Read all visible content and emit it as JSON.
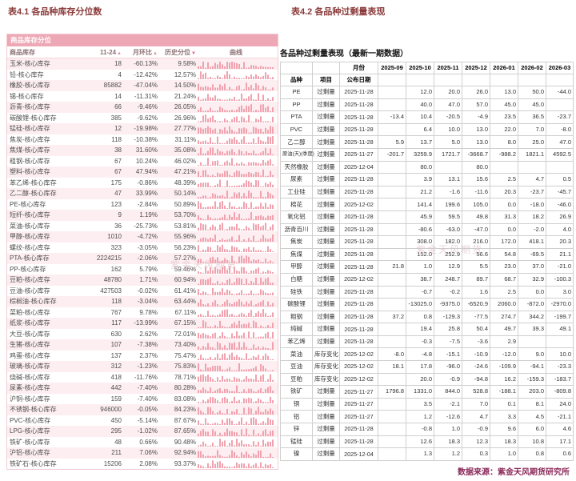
{
  "page": {
    "title_left": "表4.1 各品种库存分位数",
    "title_right": "表4.2 各品种过剩量表现",
    "footer": "数据来源：紫金天风期货研究所",
    "watermark": "紫金天风期货"
  },
  "colors": {
    "positive_value": "#2e6bcc",
    "negative_value": "#e23a3a",
    "table_accent_pink": "#eda7b5",
    "sparkline_pink": "#f0a2ae",
    "footer_text": "#8a2858"
  },
  "left_table": {
    "band_title": "商品库存分位",
    "columns": [
      "商品库存",
      "11-24",
      "月环比",
      "历史分位",
      "曲线"
    ],
    "sort_asc_glyph": "▲",
    "sort_desc_glyph": "▼",
    "rows": [
      {
        "name": "玉米-核心库存",
        "value": "18",
        "mom": "-60.13%",
        "pct": "9.58%"
      },
      {
        "name": "铅-核心库存",
        "value": "4",
        "mom": "-12.42%",
        "pct": "12.57%"
      },
      {
        "name": "橡胶-核心库存",
        "value": "85882",
        "mom": "-47.04%",
        "pct": "14.50%"
      },
      {
        "name": "锡-核心库存",
        "value": "14",
        "mom": "-11.31%",
        "pct": "21.24%"
      },
      {
        "name": "沥青-核心库存",
        "value": "66",
        "mom": "-9.46%",
        "pct": "26.05%"
      },
      {
        "name": "碳酸锂-核心库存",
        "value": "385",
        "mom": "-9.62%",
        "pct": "26.96%"
      },
      {
        "name": "锰硅-核心库存",
        "value": "12",
        "mom": "-19.98%",
        "pct": "27.77%"
      },
      {
        "name": "焦炭-核心库存",
        "value": "118",
        "mom": "-10.38%",
        "pct": "31.11%"
      },
      {
        "name": "焦煤-核心库存",
        "value": "38",
        "mom": "31.60%",
        "pct": "35.08%"
      },
      {
        "name": "粗钢-核心库存",
        "value": "67",
        "mom": "10.24%",
        "pct": "46.02%"
      },
      {
        "name": "塑料-核心库存",
        "value": "67",
        "mom": "47.94%",
        "pct": "47.21%"
      },
      {
        "name": "苯乙烯-核心库存",
        "value": "175",
        "mom": "-0.86%",
        "pct": "48.39%"
      },
      {
        "name": "乙二醇-核心库存",
        "value": "47",
        "mom": "33.99%",
        "pct": "50.14%"
      },
      {
        "name": "PE-核心库存",
        "value": "123",
        "mom": "-2.84%",
        "pct": "50.89%"
      },
      {
        "name": "短纤-核心库存",
        "value": "9",
        "mom": "1.19%",
        "pct": "53.70%"
      },
      {
        "name": "菜油-核心库存",
        "value": "36",
        "mom": "-25.73%",
        "pct": "53.81%"
      },
      {
        "name": "甲醇-核心库存",
        "value": "1010",
        "mom": "-4.72%",
        "pct": "55.96%"
      },
      {
        "name": "螺纹-核心库存",
        "value": "323",
        "mom": "-3.05%",
        "pct": "56.23%"
      },
      {
        "name": "PTA-核心库存",
        "value": "2224215",
        "mom": "-2.06%",
        "pct": "57.27%"
      },
      {
        "name": "PP-核心库存",
        "value": "162",
        "mom": "5.79%",
        "pct": "59.46%"
      },
      {
        "name": "豆粕-核心库存",
        "value": "48780",
        "mom": "1.71%",
        "pct": "60.94%"
      },
      {
        "name": "豆油-核心库存",
        "value": "427503",
        "mom": "-0.02%",
        "pct": "61.41%"
      },
      {
        "name": "棕榈油-核心库存",
        "value": "118",
        "mom": "-3.04%",
        "pct": "63.44%"
      },
      {
        "name": "菜粕-核心库存",
        "value": "767",
        "mom": "9.78%",
        "pct": "67.11%"
      },
      {
        "name": "纸浆-核心库存",
        "value": "117",
        "mom": "-13.99%",
        "pct": "67.15%"
      },
      {
        "name": "大豆-核心库存",
        "value": "630",
        "mom": "2.62%",
        "pct": "72.01%"
      },
      {
        "name": "生猪-核心库存",
        "value": "107",
        "mom": "-7.38%",
        "pct": "73.40%"
      },
      {
        "name": "鸡蛋-核心库存",
        "value": "137",
        "mom": "2.37%",
        "pct": "75.47%"
      },
      {
        "name": "玻璃-核心库存",
        "value": "312",
        "mom": "-1.23%",
        "pct": "75.83%"
      },
      {
        "name": "烧碱-核心库存",
        "value": "418",
        "mom": "-11.76%",
        "pct": "78.71%"
      },
      {
        "name": "尿素-核心库存",
        "value": "442",
        "mom": "-7.40%",
        "pct": "80.28%"
      },
      {
        "name": "沪铜-核心库存",
        "value": "159",
        "mom": "-7.40%",
        "pct": "83.08%"
      },
      {
        "name": "不锈钢-核心库存",
        "value": "946000",
        "mom": "-0.05%",
        "pct": "84.23%"
      },
      {
        "name": "PVC-核心库存",
        "value": "450",
        "mom": "-5.14%",
        "pct": "87.67%"
      },
      {
        "name": "LPG-核心库存",
        "value": "295",
        "mom": "-1.02%",
        "pct": "87.65%"
      },
      {
        "name": "铁矿-核心库存",
        "value": "48",
        "mom": "0.66%",
        "pct": "90.48%"
      },
      {
        "name": "沪铝-核心库存",
        "value": "211",
        "mom": "7.06%",
        "pct": "92.94%"
      },
      {
        "name": "铁矿石-核心库存",
        "value": "15206",
        "mom": "2.08%",
        "pct": "93.37%"
      }
    ]
  },
  "right_table": {
    "title": "各品种过剩量表现（最新一期数据）",
    "header_month_label": "月份",
    "header2": [
      "品种",
      "项目",
      "公布日期"
    ],
    "months": [
      "2025-09",
      "2025-10",
      "2025-11",
      "2025-12",
      "2026-01",
      "2026-02",
      "2026-03"
    ],
    "rows": [
      {
        "name": "PE",
        "item": "过剩量",
        "date": "2025-11-28",
        "values": [
          "",
          "12.0",
          "20.0",
          "26.0",
          "13.0",
          "50.0",
          "-44.0"
        ]
      },
      {
        "name": "PP",
        "item": "过剩量",
        "date": "2025-11-28",
        "values": [
          "",
          "40.0",
          "47.0",
          "57.0",
          "45.0",
          "45.0",
          ""
        ]
      },
      {
        "name": "PTA",
        "item": "过剩量",
        "date": "2025-11-28",
        "values": [
          "-13.4",
          "10.4",
          "-20.5",
          "-4.9",
          "23.5",
          "36.5",
          "-23.7"
        ]
      },
      {
        "name": "PVC",
        "item": "过剩量",
        "date": "2025-11-28",
        "values": [
          "",
          "6.4",
          "10.0",
          "13.0",
          "22.0",
          "7.0",
          "-8.0"
        ]
      },
      {
        "name": "乙二醇",
        "item": "过剩量",
        "date": "2025-11-28",
        "values": [
          "5.9",
          "13.7",
          "5.0",
          "13.0",
          "8.0",
          "25.0",
          "47.0"
        ]
      },
      {
        "name": "原油(天)(季度)",
        "item": "过剩量",
        "date": "2025-11-27",
        "values": [
          "-201.7",
          "3259.9",
          "1721.7",
          "-3668.7",
          "-988.2",
          "1821.1",
          "4592.5"
        ]
      },
      {
        "name": "天然橡胶",
        "item": "过剩量",
        "date": "2025-12-04",
        "values": [
          "",
          "80.0",
          "",
          "80.0",
          "",
          "",
          ""
        ]
      },
      {
        "name": "尿素",
        "item": "过剩量",
        "date": "2025-11-28",
        "values": [
          "",
          "3.9",
          "13.1",
          "15.6",
          "2.5",
          "4.7",
          "0.5"
        ]
      },
      {
        "name": "工业硅",
        "item": "过剩量",
        "date": "2025-11-28",
        "values": [
          "",
          "21.2",
          "-1.6",
          "-11.6",
          "20.3",
          "-23.7",
          "-45.7"
        ]
      },
      {
        "name": "棉花",
        "item": "过剩量",
        "date": "2025-12-02",
        "values": [
          "",
          "141.4",
          "199.6",
          "105.0",
          "0.0",
          "-18.0",
          "-46.0"
        ]
      },
      {
        "name": "氧化铝",
        "item": "过剩量",
        "date": "2025-11-28",
        "values": [
          "",
          "45.9",
          "59.5",
          "49.8",
          "31.3",
          "18.2",
          "26.9"
        ]
      },
      {
        "name": "沥青百川",
        "item": "过剩量",
        "date": "2025-11-28",
        "values": [
          "",
          "-80.6",
          "-63.0",
          "-47.0",
          "0.0",
          "-2.0",
          "4.0"
        ]
      },
      {
        "name": "焦炭",
        "item": "过剩量",
        "date": "2025-11-28",
        "values": [
          "",
          "308.0",
          "182.0",
          "216.0",
          "172.0",
          "418.1",
          "20.3"
        ]
      },
      {
        "name": "焦煤",
        "item": "过剩量",
        "date": "2025-11-28",
        "values": [
          "",
          "152.0",
          "252.9",
          "56.6",
          "54.8",
          "-69.5",
          "21.1"
        ]
      },
      {
        "name": "甲醇",
        "item": "过剩量",
        "date": "2025-11-28",
        "values": [
          "21.8",
          "1.0",
          "12.9",
          "5.5",
          "23.0",
          "37.0",
          "-21.0"
        ]
      },
      {
        "name": "白糖",
        "item": "过剩量",
        "date": "2025-12-02",
        "values": [
          "",
          "38.7",
          "248.7",
          "89.7",
          "68.7",
          "32.9",
          "-100.3"
        ]
      },
      {
        "name": "硅铁",
        "item": "过剩量",
        "date": "2025-11-28",
        "values": [
          "",
          "-0.7",
          "-0.2",
          "1.6",
          "2.5",
          "0.0",
          "3.0"
        ]
      },
      {
        "name": "碳酸锂",
        "item": "过剩量",
        "date": "2025-11-28",
        "values": [
          "",
          "-13025.0",
          "-9375.0",
          "-6520.9",
          "2060.0",
          "-872.0",
          "-2970.0"
        ]
      },
      {
        "name": "粗钢",
        "item": "过剩量",
        "date": "2025-11-28",
        "values": [
          "37.2",
          "0.8",
          "-129.3",
          "-77.5",
          "274.7",
          "344.2",
          "-199.7"
        ]
      },
      {
        "name": "纯碱",
        "item": "过剩量",
        "date": "2025-11-28",
        "values": [
          "",
          "19.4",
          "25.8",
          "50.4",
          "49.7",
          "39.3",
          "49.1"
        ]
      },
      {
        "name": "苯乙烯",
        "item": "过剩量",
        "date": "2025-11-28",
        "values": [
          "",
          "-0.3",
          "-7.5",
          "-3.6",
          "2.9",
          "",
          ""
        ]
      },
      {
        "name": "菜油",
        "item": "库存变化",
        "date": "2025-12-02",
        "values": [
          "-8.0",
          "-4.8",
          "-15.1",
          "-10.9",
          "-12.0",
          "9.0",
          "10.0"
        ]
      },
      {
        "name": "豆油",
        "item": "库存变化",
        "date": "2025-12-02",
        "values": [
          "18.1",
          "17.8",
          "-96.0",
          "-24.6",
          "-109.9",
          "-94.1",
          "-23.3"
        ]
      },
      {
        "name": "豆粕",
        "item": "库存变化",
        "date": "2025-12-02",
        "values": [
          "",
          "20.0",
          "-0.9",
          "-94.8",
          "16.2",
          "-159.3",
          "-183.7"
        ]
      },
      {
        "name": "铁矿",
        "item": "过剩量",
        "date": "2025-11-27",
        "values": [
          "1796.8",
          "1331.0",
          "844.0",
          "528.8",
          "-188.1",
          "203.0",
          "-809.8"
        ]
      },
      {
        "name": "铜",
        "item": "过剩量",
        "date": "2025-11-27",
        "values": [
          "",
          "3.5",
          "-2.1",
          "7.0",
          "0.1",
          "8.1",
          "24.0"
        ]
      },
      {
        "name": "铝",
        "item": "过剩量",
        "date": "2025-11-27",
        "values": [
          "",
          "1.2",
          "-12.6",
          "4.7",
          "3.3",
          "4.5",
          "-21.1"
        ]
      },
      {
        "name": "锌",
        "item": "过剩量",
        "date": "2025-11-28",
        "values": [
          "",
          "-0.8",
          "1.0",
          "-0.9",
          "9.6",
          "6.0",
          "4.6"
        ]
      },
      {
        "name": "锰硅",
        "item": "过剩量",
        "date": "2025-11-28",
        "values": [
          "",
          "12.6",
          "18.3",
          "12.3",
          "18.3",
          "10.8",
          "17.1"
        ]
      },
      {
        "name": "镍",
        "item": "过剩量",
        "date": "2025-12-04",
        "values": [
          "",
          "1.3",
          "1.2",
          "0.3",
          "1.0",
          "0.8",
          "0.6"
        ]
      }
    ]
  }
}
